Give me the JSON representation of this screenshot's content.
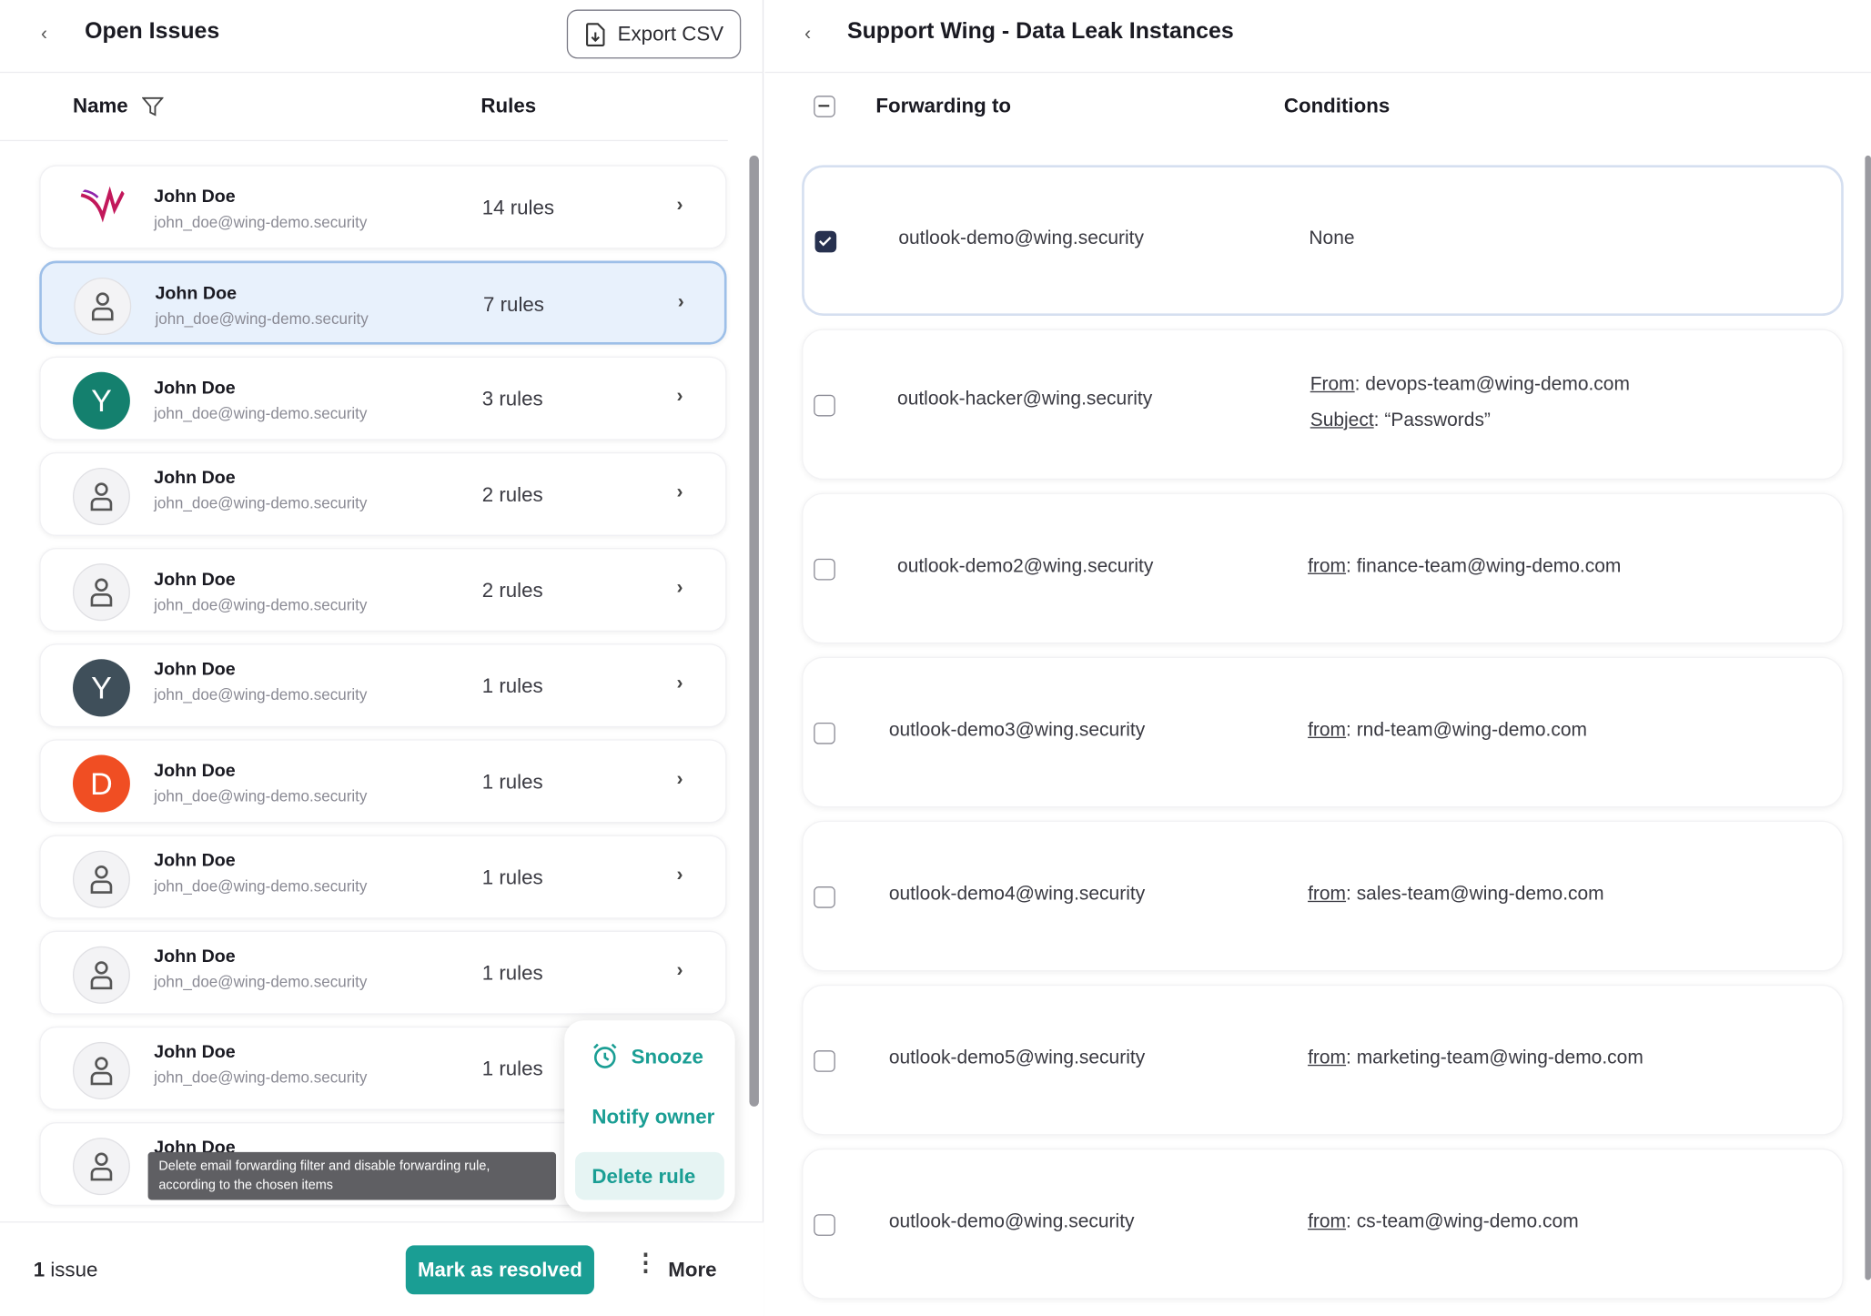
{
  "left": {
    "title": "Open Issues",
    "export_label": "Export CSV",
    "col_name": "Name",
    "col_rules": "Rules",
    "rows": [
      {
        "name": "John Doe",
        "email": "john_doe@wing-demo.security",
        "rules": "14 rules",
        "avatar": "wing-logo"
      },
      {
        "name": "John Doe",
        "email": "john_doe@wing-demo.security",
        "rules": "7 rules",
        "avatar": "person-icon"
      },
      {
        "name": "John Doe",
        "email": "john_doe@wing-demo.security",
        "rules": "3 rules",
        "avatar": "Y"
      },
      {
        "name": "John Doe",
        "email": "john_doe@wing-demo.security",
        "rules": "2 rules",
        "avatar": "person-icon"
      },
      {
        "name": "John Doe",
        "email": "john_doe@wing-demo.security",
        "rules": "2 rules",
        "avatar": "person-icon"
      },
      {
        "name": "John Doe",
        "email": "john_doe@wing-demo.security",
        "rules": "1 rules",
        "avatar": "Y"
      },
      {
        "name": "John Doe",
        "email": "john_doe@wing-demo.security",
        "rules": "1 rules",
        "avatar": "D"
      },
      {
        "name": "John Doe",
        "email": "john_doe@wing-demo.security",
        "rules": "1 rules",
        "avatar": "person-icon"
      },
      {
        "name": "John Doe",
        "email": "john_doe@wing-demo.security",
        "rules": "1 rules",
        "avatar": "person-icon"
      },
      {
        "name": "John Doe",
        "email": "john_doe@wing-demo.security",
        "rules": "1 rules",
        "avatar": "person-icon"
      },
      {
        "name": "John Doe",
        "email": "",
        "rules": "",
        "avatar": "person-icon"
      }
    ],
    "tooltip": "Delete email forwarding filter and disable forwarding rule, according to the chosen items",
    "menu": {
      "snooze": "Snooze",
      "notify": "Notify owner",
      "delete": "Delete rule"
    },
    "footer": {
      "count_num": "1",
      "count_label": "issue",
      "resolve": "Mark as resolved",
      "more": "More"
    }
  },
  "right": {
    "title": "Support Wing - Data Leak Instances",
    "col_forwarding": "Forwarding to",
    "col_conditions": "Conditions",
    "rows": [
      {
        "checked": true,
        "forwarding": "outlook-demo@wing.security",
        "conditions": [
          {
            "key": "",
            "value": "None"
          }
        ]
      },
      {
        "checked": false,
        "forwarding": "outlook-hacker@wing.security",
        "conditions": [
          {
            "key": "From",
            "value": ": devops-team@wing-demo.com"
          },
          {
            "key": "Subject",
            "value": ": “Passwords”"
          }
        ]
      },
      {
        "checked": false,
        "forwarding": "outlook-demo2@wing.security",
        "conditions": [
          {
            "key": "from",
            "value": ": finance-team@wing-demo.com"
          }
        ]
      },
      {
        "checked": false,
        "forwarding": "outlook-demo3@wing.security",
        "conditions": [
          {
            "key": "from",
            "value": ": rnd-team@wing-demo.com"
          }
        ]
      },
      {
        "checked": false,
        "forwarding": "outlook-demo4@wing.security",
        "conditions": [
          {
            "key": "from",
            "value": ": sales-team@wing-demo.com"
          }
        ]
      },
      {
        "checked": false,
        "forwarding": "outlook-demo5@wing.security",
        "conditions": [
          {
            "key": "from",
            "value": ": marketing-team@wing-demo.com"
          }
        ]
      },
      {
        "checked": false,
        "forwarding": "outlook-demo@wing.security",
        "conditions": [
          {
            "key": "from",
            "value": ": cs-team@wing-demo.com"
          }
        ]
      }
    ]
  },
  "colors": {
    "accent": "#1a9e94",
    "selected_row": "#e8f1fc",
    "checkbox_on": "#27314f",
    "avatar_green": "#14806e",
    "avatar_slate": "#3f4f5a",
    "avatar_orange": "#f04e23"
  }
}
